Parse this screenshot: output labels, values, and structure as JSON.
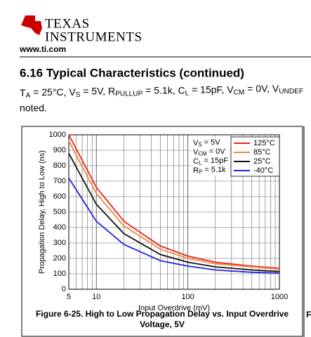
{
  "header": {
    "brand_line1": "Texas",
    "brand_line2": "Instruments",
    "url": "www.ti.com"
  },
  "section_title": "6.16 Typical Characteristics (continued)",
  "conditions": [
    [
      "T",
      false
    ],
    [
      "A",
      true
    ],
    [
      " = 25°C, V",
      false
    ],
    [
      "S",
      true
    ],
    [
      " = 5V, R",
      false
    ],
    [
      "PULLUP",
      true
    ],
    [
      " = 5.1k, C",
      false
    ],
    [
      "L",
      true
    ],
    [
      " = 15pF, V",
      false
    ],
    [
      "CM",
      true
    ],
    [
      " = 0V, V",
      false
    ],
    [
      "UNDEF",
      true
    ]
  ],
  "conditions_end": "noted.",
  "chart_data": {
    "type": "line",
    "xscale": "log",
    "xlabel": "Input Overdrive (mV)",
    "ylabel": "Propagation Delay, High to Low (ns)",
    "x": [
      5,
      10,
      20,
      50,
      100,
      200,
      500,
      1000
    ],
    "series": [
      {
        "name": "125°C",
        "color": "#e8251b",
        "values": [
          1000,
          660,
          440,
          280,
          215,
          175,
          150,
          135
        ]
      },
      {
        "name": "85°C",
        "color": "#f08a3c",
        "values": [
          960,
          620,
          410,
          260,
          200,
          165,
          145,
          130
        ]
      },
      {
        "name": "25°C",
        "color": "#111111",
        "values": [
          880,
          550,
          360,
          225,
          175,
          145,
          125,
          115
        ]
      },
      {
        "name": "-40°C",
        "color": "#2222dd",
        "values": [
          720,
          440,
          290,
          185,
          150,
          125,
          110,
          105
        ]
      }
    ],
    "xlim": [
      5,
      1000
    ],
    "xticks": [
      5,
      10,
      100,
      1000
    ],
    "xminorticks": [
      6,
      7,
      8,
      9,
      20,
      30,
      40,
      50,
      60,
      70,
      80,
      90,
      200,
      300,
      400,
      500,
      600,
      700,
      800,
      900
    ],
    "ylim": [
      0,
      1000
    ],
    "yticks": [
      0,
      100,
      200,
      300,
      400,
      500,
      600,
      700,
      800,
      900,
      1000
    ],
    "grid": true,
    "annotations": [
      [
        [
          "V",
          false
        ],
        [
          "S",
          true
        ],
        [
          " = 5V",
          false
        ]
      ],
      [
        [
          "V",
          false
        ],
        [
          "CM",
          true
        ],
        [
          " = 0V",
          false
        ]
      ],
      [
        [
          "C",
          false
        ],
        [
          "L",
          true
        ],
        [
          " = 15pF",
          false
        ]
      ],
      [
        [
          "R",
          false
        ],
        [
          "P",
          true
        ],
        [
          " = 5.1k",
          false
        ]
      ]
    ],
    "caption": [
      "Figure 6-25. High to Low Propagation Delay vs. Input Overdrive",
      "Voltage, 5V"
    ]
  },
  "next_caption_fragment": "Fi"
}
